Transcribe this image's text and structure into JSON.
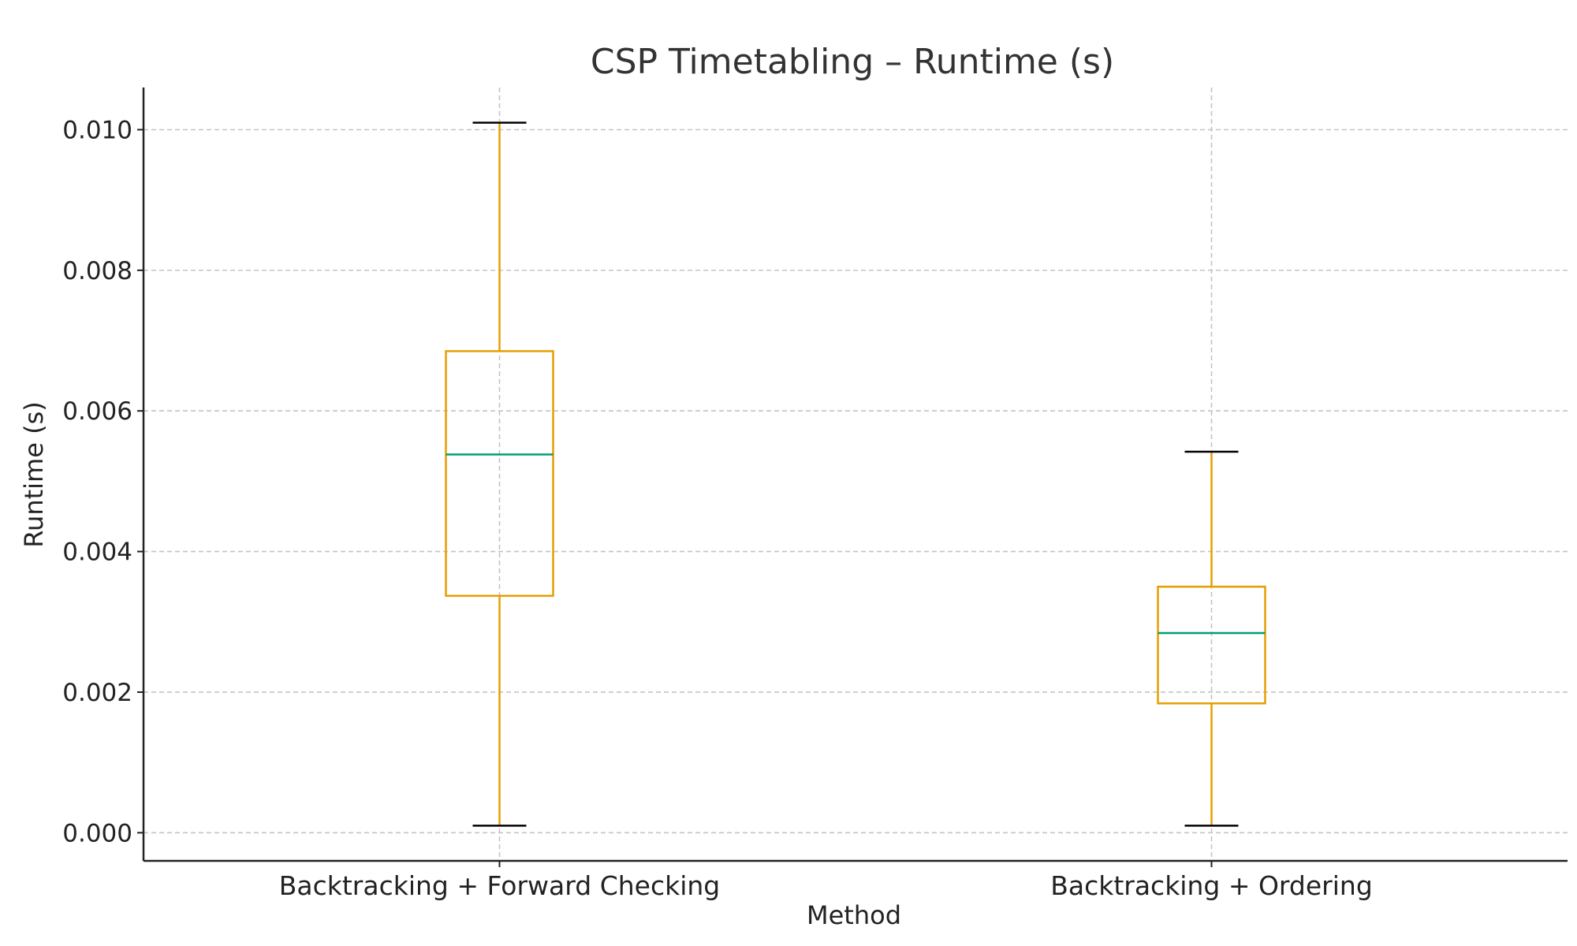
{
  "chart_data": {
    "type": "boxplot",
    "title": "CSP Timetabling – Runtime (s)",
    "xlabel": "Method",
    "ylabel": "Runtime (s)",
    "ylim": [
      -0.0004,
      0.0106
    ],
    "yticks": [
      0.0,
      0.002,
      0.004,
      0.006,
      0.008,
      0.01
    ],
    "ytick_labels": [
      "0.000",
      "0.002",
      "0.004",
      "0.006",
      "0.008",
      "0.010"
    ],
    "grid": true,
    "categories": [
      "Backtracking + Forward Checking",
      "Backtracking + Ordering"
    ],
    "boxes": [
      {
        "category": "Backtracking + Forward Checking",
        "whisker_low": 0.0001,
        "q1": 0.00337,
        "median": 0.00538,
        "q3": 0.00685,
        "whisker_high": 0.0101
      },
      {
        "category": "Backtracking + Ordering",
        "whisker_low": 0.0001,
        "q1": 0.00184,
        "median": 0.00284,
        "q3": 0.0035,
        "whisker_high": 0.00542
      }
    ],
    "colors": {
      "box": "#e69f00",
      "median": "#009e73",
      "whisker_cap": "#000000"
    }
  }
}
